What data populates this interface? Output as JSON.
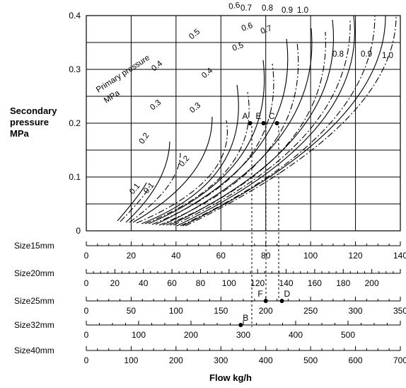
{
  "chart_data": {
    "type": "line",
    "ylabel_lines": [
      "Secondary",
      "pressure",
      "MPa"
    ],
    "xlabel": "Flow kg/h",
    "primary_pressure_label": "Primary pressure MPa",
    "y_axis": {
      "min": 0,
      "max": 0.4,
      "ticks": [
        "0",
        "0.1",
        "0.2",
        "0.3",
        "0.4"
      ]
    },
    "grid": true,
    "x_axis_range": [
      0,
      140
    ],
    "curve_labels": [
      "0.1",
      "0.1",
      "0.2",
      "0.2",
      "0.3",
      "0.3",
      "0.4",
      "0.4",
      "0.5",
      "0.5",
      "0.6",
      "0.6",
      "0.7",
      "0.7",
      "0.8",
      "0.8",
      "0.9",
      "0.9",
      "1.0",
      "1.0"
    ],
    "points": [
      {
        "label": "A",
        "x": 73,
        "y": 0.2
      },
      {
        "label": "E",
        "x": 79,
        "y": 0.2
      },
      {
        "label": "C",
        "x": 85,
        "y": 0.2
      }
    ],
    "scale_points": [
      {
        "label": "F",
        "scale": "Size25mm",
        "value": 200
      },
      {
        "label": "D",
        "scale": "Size25mm",
        "value": 218
      },
      {
        "label": "B",
        "scale": "Size32mm",
        "value": 295
      }
    ],
    "size_scales": [
      {
        "name": "Size15mm",
        "max": 140,
        "labels": [
          "0",
          "20",
          "40",
          "60",
          "80",
          "100",
          "120",
          "140"
        ]
      },
      {
        "name": "Size20mm",
        "max": 220,
        "labels": [
          "0",
          "20",
          "40",
          "60",
          "80",
          "100",
          "120",
          "140",
          "160",
          "180",
          "200"
        ]
      },
      {
        "name": "Size25mm",
        "max": 350,
        "labels": [
          "0",
          "50",
          "100",
          "150",
          "200",
          "250",
          "300",
          "350"
        ]
      },
      {
        "name": "Size32mm",
        "max": 600,
        "labels": [
          "0",
          "100",
          "200",
          "300",
          "400",
          "500"
        ]
      },
      {
        "name": "Size40mm",
        "max": 700,
        "labels": [
          "0",
          "100",
          "200",
          "300",
          "400",
          "500",
          "600",
          "700"
        ]
      }
    ]
  }
}
